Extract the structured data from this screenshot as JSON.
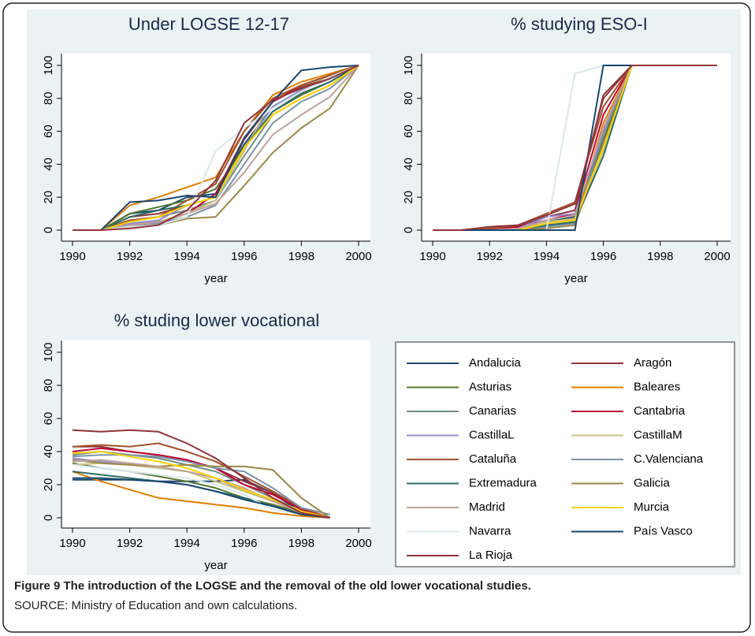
{
  "chart_data": [
    {
      "type": "line",
      "title": "Under LOGSE 12-17",
      "xlabel": "year",
      "x": [
        1990,
        1991,
        1992,
        1993,
        1994,
        1995,
        1996,
        1997,
        1998,
        1999,
        2000
      ],
      "xlim": [
        1990,
        2000
      ],
      "xticks": [
        1990,
        1992,
        1994,
        1996,
        1998,
        2000
      ],
      "ylim": [
        0,
        100
      ],
      "yticks": [
        0,
        20,
        40,
        60,
        80,
        100
      ],
      "legend": "bottom-right",
      "series": [
        {
          "name": "Andalucia",
          "color": "#1a476f",
          "values": [
            0,
            0,
            10,
            12,
            20,
            22,
            52,
            75,
            85,
            92,
            100
          ]
        },
        {
          "name": "Aragón",
          "color": "#90353b",
          "values": [
            0,
            0,
            8,
            10,
            15,
            20,
            55,
            78,
            87,
            93,
            100
          ]
        },
        {
          "name": "Asturias",
          "color": "#55752f",
          "values": [
            0,
            0,
            10,
            14,
            18,
            25,
            50,
            72,
            82,
            90,
            100
          ]
        },
        {
          "name": "Baleares",
          "color": "#e37e00",
          "values": [
            0,
            0,
            15,
            20,
            26,
            32,
            60,
            82,
            90,
            95,
            100
          ]
        },
        {
          "name": "Canarias",
          "color": "#6e8e84",
          "values": [
            0,
            0,
            5,
            8,
            12,
            18,
            45,
            70,
            80,
            88,
            100
          ]
        },
        {
          "name": "Cantabria",
          "color": "#c10534",
          "values": [
            0,
            0,
            3,
            5,
            10,
            22,
            56,
            78,
            88,
            94,
            100
          ]
        },
        {
          "name": "CastillaL",
          "color": "#938dd2",
          "values": [
            0,
            0,
            4,
            6,
            15,
            20,
            50,
            75,
            85,
            92,
            100
          ]
        },
        {
          "name": "CastillaM",
          "color": "#cac27e",
          "values": [
            0,
            0,
            2,
            4,
            10,
            18,
            48,
            80,
            88,
            93,
            100
          ]
        },
        {
          "name": "Cataluña",
          "color": "#a0522d",
          "values": [
            0,
            0,
            6,
            8,
            18,
            28,
            60,
            80,
            88,
            94,
            100
          ]
        },
        {
          "name": "C.Valenciana",
          "color": "#7b92a8",
          "values": [
            0,
            0,
            3,
            4,
            8,
            15,
            40,
            65,
            78,
            86,
            100
          ]
        },
        {
          "name": "Extremadura",
          "color": "#2d6d66",
          "values": [
            0,
            0,
            8,
            12,
            15,
            20,
            50,
            72,
            83,
            90,
            100
          ]
        },
        {
          "name": "Galicia",
          "color": "#9c8847",
          "values": [
            0,
            0,
            2,
            3,
            7,
            8,
            27,
            47,
            62,
            74,
            100
          ]
        },
        {
          "name": "Madrid",
          "color": "#bfa19c",
          "values": [
            0,
            0,
            3,
            5,
            10,
            16,
            35,
            58,
            70,
            81,
            100
          ]
        },
        {
          "name": "Murcia",
          "color": "#ffd200",
          "values": [
            0,
            0,
            5,
            8,
            15,
            20,
            50,
            70,
            80,
            88,
            100
          ]
        },
        {
          "name": "Navarra",
          "color": "#d9e6eb",
          "values": [
            0,
            0,
            2,
            3,
            8,
            48,
            62,
            74,
            84,
            93,
            100
          ]
        },
        {
          "name": "País Vasco",
          "color": "#1a476f",
          "values": [
            0,
            0,
            17,
            18,
            21,
            20,
            56,
            78,
            97,
            99,
            100
          ]
        },
        {
          "name": "La Rioja",
          "color": "#90353b",
          "values": [
            0,
            0,
            1,
            3,
            12,
            30,
            65,
            79,
            86,
            92,
            100
          ]
        }
      ]
    },
    {
      "type": "line",
      "title": "% studying ESO-I",
      "xlabel": "year",
      "x": [
        1990,
        1991,
        1992,
        1993,
        1994,
        1995,
        1996,
        1997,
        1998,
        1999,
        2000
      ],
      "xlim": [
        1990,
        2000
      ],
      "xticks": [
        1990,
        1992,
        1994,
        1996,
        1998,
        2000
      ],
      "ylim": [
        0,
        100
      ],
      "yticks": [
        0,
        20,
        40,
        60,
        80,
        100
      ],
      "series": [
        {
          "values": [
            0,
            0,
            0,
            0,
            5,
            8,
            60,
            100,
            100,
            100,
            100
          ]
        },
        {
          "values": [
            0,
            0,
            1,
            2,
            8,
            12,
            82,
            100,
            100,
            100,
            100
          ]
        },
        {
          "values": [
            0,
            0,
            0,
            1,
            4,
            6,
            55,
            100,
            100,
            100,
            100
          ]
        },
        {
          "values": [
            0,
            0,
            0,
            0,
            2,
            5,
            65,
            100,
            100,
            100,
            100
          ]
        },
        {
          "values": [
            0,
            0,
            0,
            0,
            3,
            4,
            50,
            100,
            100,
            100,
            100
          ]
        },
        {
          "values": [
            0,
            0,
            1,
            2,
            6,
            10,
            70,
            100,
            100,
            100,
            100
          ]
        },
        {
          "values": [
            0,
            0,
            0,
            1,
            8,
            10,
            60,
            100,
            100,
            100,
            100
          ]
        },
        {
          "values": [
            0,
            0,
            0,
            0,
            5,
            7,
            48,
            100,
            100,
            100,
            100
          ]
        },
        {
          "values": [
            0,
            0,
            1,
            3,
            10,
            17,
            75,
            100,
            100,
            100,
            100
          ]
        },
        {
          "values": [
            0,
            0,
            0,
            0,
            2,
            4,
            58,
            100,
            100,
            100,
            100
          ]
        },
        {
          "values": [
            0,
            0,
            0,
            0,
            3,
            5,
            45,
            100,
            100,
            100,
            100
          ]
        },
        {
          "values": [
            0,
            0,
            0,
            0,
            1,
            3,
            52,
            100,
            100,
            100,
            100
          ]
        },
        {
          "values": [
            0,
            0,
            0,
            1,
            6,
            9,
            62,
            100,
            100,
            100,
            100
          ]
        },
        {
          "values": [
            0,
            0,
            0,
            0,
            4,
            6,
            50,
            100,
            100,
            100,
            100
          ]
        },
        {
          "values": [
            0,
            0,
            0,
            0,
            0,
            95,
            100,
            100,
            100,
            100,
            100
          ]
        },
        {
          "values": [
            0,
            0,
            0,
            0,
            0,
            0,
            100,
            100,
            100,
            100,
            100
          ]
        },
        {
          "values": [
            0,
            0,
            2,
            3,
            9,
            16,
            80,
            100,
            100,
            100,
            100
          ]
        }
      ]
    },
    {
      "type": "line",
      "title": "% studing lower vocational",
      "xlabel": "year",
      "x": [
        1990,
        1991,
        1992,
        1993,
        1994,
        1995,
        1996,
        1997,
        1998,
        1999
      ],
      "xlim": [
        1990,
        2000
      ],
      "xticks": [
        1990,
        1992,
        1994,
        1996,
        1998,
        2000
      ],
      "ylim": [
        0,
        100
      ],
      "yticks": [
        0,
        20,
        40,
        60,
        80,
        100
      ],
      "series": [
        {
          "values": [
            23,
            23,
            23,
            22,
            22,
            22,
            23,
            15,
            3,
            0
          ]
        },
        {
          "values": [
            43,
            43,
            40,
            38,
            35,
            30,
            22,
            15,
            5,
            0
          ]
        },
        {
          "values": [
            33,
            30,
            28,
            25,
            22,
            18,
            12,
            8,
            3,
            0
          ]
        },
        {
          "values": [
            28,
            22,
            17,
            12,
            10,
            8,
            6,
            3,
            1,
            0
          ]
        },
        {
          "values": [
            38,
            40,
            38,
            36,
            32,
            28,
            20,
            12,
            4,
            0
          ]
        },
        {
          "values": [
            40,
            42,
            40,
            38,
            35,
            30,
            20,
            14,
            5,
            0
          ]
        },
        {
          "values": [
            36,
            34,
            32,
            30,
            28,
            24,
            16,
            10,
            3,
            0
          ]
        },
        {
          "values": [
            32,
            33,
            32,
            30,
            28,
            22,
            16,
            10,
            3,
            0
          ]
        },
        {
          "values": [
            43,
            44,
            43,
            45,
            40,
            34,
            25,
            16,
            6,
            0
          ]
        },
        {
          "values": [
            37,
            38,
            38,
            37,
            34,
            30,
            28,
            18,
            6,
            2
          ]
        },
        {
          "values": [
            28,
            26,
            24,
            22,
            20,
            16,
            12,
            7,
            2,
            0
          ]
        },
        {
          "values": [
            35,
            33,
            32,
            31,
            32,
            31,
            31,
            29,
            12,
            0
          ]
        },
        {
          "values": [
            34,
            35,
            33,
            31,
            28,
            24,
            18,
            10,
            3,
            0
          ]
        },
        {
          "values": [
            39,
            40,
            37,
            34,
            30,
            24,
            17,
            11,
            4,
            0
          ]
        },
        {
          "values": [
            32,
            30,
            28,
            26,
            24,
            20,
            14,
            5,
            2,
            0
          ]
        },
        {
          "values": [
            24,
            24,
            23,
            22,
            20,
            16,
            11,
            7,
            2,
            0
          ]
        },
        {
          "values": [
            53,
            52,
            53,
            52,
            45,
            36,
            24,
            12,
            3,
            0
          ]
        }
      ]
    }
  ],
  "caption": {
    "title": "Figure 9 The introduction of the LOGSE and the removal of the old lower vocational studies.",
    "source": "SOURCE:  Ministry of Education and own calculations."
  }
}
